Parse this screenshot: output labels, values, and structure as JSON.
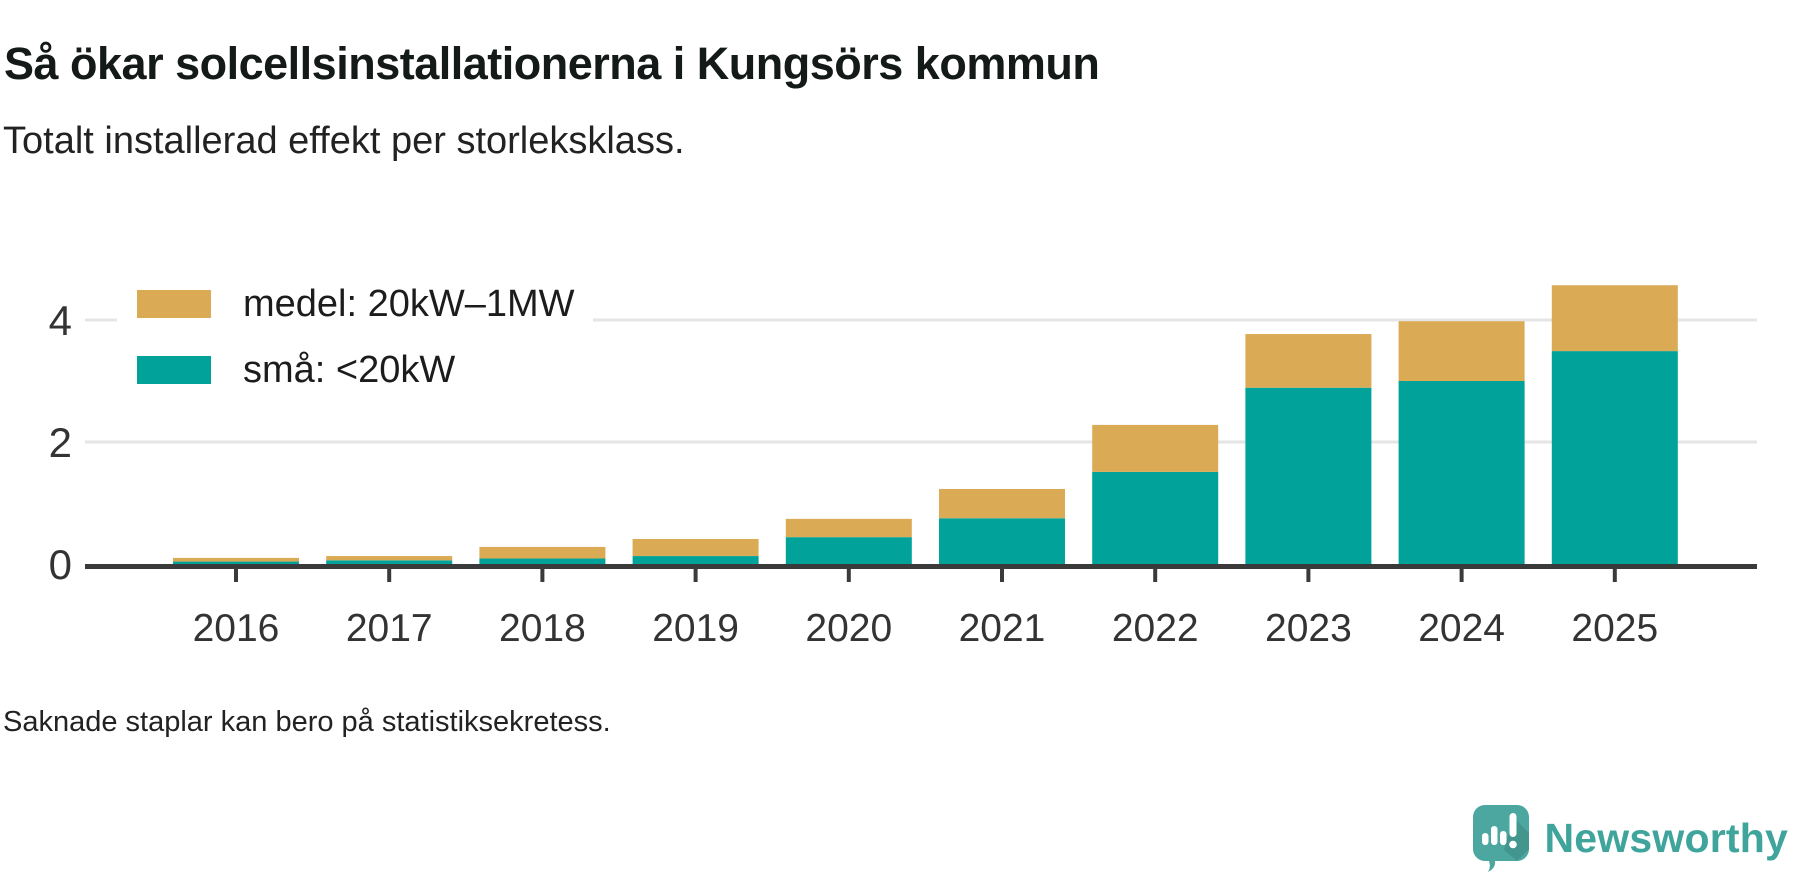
{
  "header": {
    "title": "Så ökar solcellsinstallationerna i Kungsörs kommun",
    "subtitle": "Totalt installerad effekt per storleksklass."
  },
  "legend": {
    "items": [
      {
        "key": "medel",
        "label": "medel: 20kW–1MW",
        "color": "#dbaa55"
      },
      {
        "key": "sma",
        "label": "små: <20kW",
        "color": "#00a29a"
      }
    ]
  },
  "chart_data": {
    "type": "bar",
    "stacked": true,
    "title": "Så ökar solcellsinstallationerna i Kungsörs kommun",
    "subtitle": "Totalt installerad effekt per storleksklass.",
    "xlabel": "",
    "ylabel": "",
    "categories": [
      "2016",
      "2017",
      "2018",
      "2019",
      "2020",
      "2021",
      "2022",
      "2023",
      "2024",
      "2025"
    ],
    "series": [
      {
        "name": "små: <20kW",
        "color": "#00a29a",
        "values": [
          0.04,
          0.06,
          0.09,
          0.13,
          0.44,
          0.75,
          1.51,
          2.89,
          3.0,
          3.49
        ]
      },
      {
        "name": "medel: 20kW–1MW",
        "color": "#dbaa55",
        "values": [
          0.06,
          0.07,
          0.19,
          0.28,
          0.3,
          0.48,
          0.77,
          0.88,
          0.98,
          1.08
        ]
      }
    ],
    "totals": [
      0.1,
      0.13,
      0.28,
      0.41,
      0.74,
      1.23,
      2.28,
      3.77,
      3.98,
      4.57
    ],
    "y_ticks": [
      0,
      2,
      4
    ],
    "ylim": [
      0,
      5
    ],
    "grid": "horizontal",
    "legend_position": "top-left"
  },
  "footnote": "Saknade staplar kan bero på statistiksekretess.",
  "branding": {
    "name": "Newsworthy",
    "color": "#3fa49b",
    "icon": "newsworthy-speech-bubble-chart-icon"
  },
  "colors": {
    "background": "#ffffff",
    "title_text": "#141a18",
    "body_text": "#222222",
    "axis": "#3a3a3a",
    "tick_text": "#333333",
    "gridline": "#e5e5e5",
    "series_small": "#00a29a",
    "series_medium": "#dbaa55"
  }
}
